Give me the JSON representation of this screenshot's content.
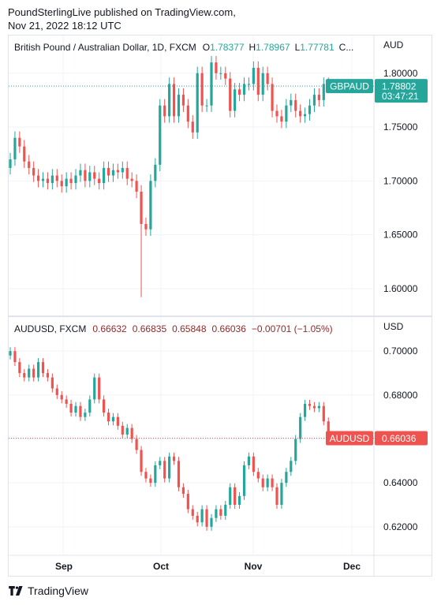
{
  "header": {
    "line1": "PoundSterlingLive published on TradingView.com,",
    "line2": "Nov 21, 2022 18:12 UTC"
  },
  "footer": {
    "brand": "TradingView",
    "logo_icon": "tradingview-logo-icon"
  },
  "colors": {
    "up": "#26a69a",
    "down": "#ef5350",
    "grid": "#f0f3fa",
    "text": "#131722"
  },
  "chart_data": [
    {
      "type": "candlestick",
      "title": "British Pound / Australian Dollar, 1D, FXCM",
      "ohlc_legend": {
        "O": "1.78377",
        "H": "1.78967",
        "L": "1.77781",
        "C": "C..."
      },
      "unit": "AUD",
      "y_ticks": [
        "1.80000",
        "1.75000",
        "1.70000",
        "1.65000",
        "1.60000"
      ],
      "ylim": [
        1.575,
        1.835
      ],
      "last_price": {
        "symbol": "GBPAUD",
        "value": "1.78802",
        "countdown": "03:47:21",
        "level": 1.78802
      },
      "closes": [
        1.72,
        1.74,
        1.732,
        1.718,
        1.712,
        1.705,
        1.7,
        1.702,
        1.698,
        1.705,
        1.7,
        1.695,
        1.702,
        1.698,
        1.705,
        1.71,
        1.7,
        1.708,
        1.702,
        1.698,
        1.712,
        1.705,
        1.71,
        1.708,
        1.712,
        1.702,
        1.7,
        1.69,
        1.66,
        1.655,
        1.7,
        1.715,
        1.77,
        1.76,
        1.79,
        1.76,
        1.78,
        1.77,
        1.755,
        1.745,
        1.8,
        1.77,
        1.77,
        1.81,
        1.8,
        1.8,
        1.795,
        1.765,
        1.785,
        1.78,
        1.79,
        1.79,
        1.805,
        1.78,
        1.8,
        1.79,
        1.765,
        1.76,
        1.755,
        1.77,
        1.775,
        1.765,
        1.76,
        1.762,
        1.77,
        1.78,
        1.775,
        1.79,
        1.788
      ],
      "extremes": [
        {
          "index": 28,
          "low": 1.592
        }
      ]
    },
    {
      "type": "candlestick",
      "title": "AUDUSD, FXCM",
      "ohlc_legend": {
        "O": "0.66632",
        "H": "0.66835",
        "L": "0.65848",
        "C": "0.66036",
        "change": "−0.00701 (−1.05%)"
      },
      "unit": "USD",
      "y_ticks": [
        "0.70000",
        "0.68000",
        "0.66000",
        "0.64000",
        "0.62000"
      ],
      "ylim": [
        0.607,
        0.7155
      ],
      "last_price": {
        "symbol": "AUDUSD",
        "value": "0.66036",
        "level": 0.66036
      },
      "closes": [
        0.7,
        0.695,
        0.69,
        0.688,
        0.692,
        0.688,
        0.695,
        0.69,
        0.688,
        0.683,
        0.68,
        0.678,
        0.676,
        0.672,
        0.675,
        0.67,
        0.672,
        0.678,
        0.688,
        0.678,
        0.672,
        0.668,
        0.67,
        0.666,
        0.662,
        0.665,
        0.66,
        0.655,
        0.645,
        0.642,
        0.64,
        0.648,
        0.65,
        0.642,
        0.652,
        0.65,
        0.638,
        0.635,
        0.628,
        0.625,
        0.622,
        0.628,
        0.62,
        0.624,
        0.628,
        0.625,
        0.63,
        0.638,
        0.63,
        0.634,
        0.648,
        0.652,
        0.645,
        0.642,
        0.638,
        0.642,
        0.638,
        0.63,
        0.64,
        0.645,
        0.65,
        0.66,
        0.67,
        0.676,
        0.675,
        0.674,
        0.675,
        0.668,
        0.66
      ],
      "extremes": []
    }
  ],
  "x_axis": {
    "labels": [
      "Sep",
      "Oct",
      "Nov",
      "Dec"
    ]
  }
}
